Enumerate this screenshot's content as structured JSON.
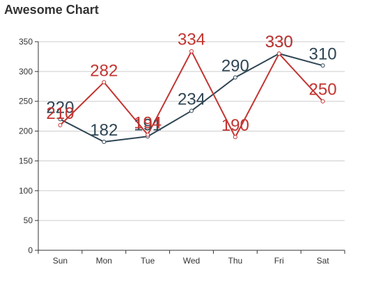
{
  "chart_data": {
    "type": "line",
    "title": "Awesome Chart",
    "categories": [
      "Sun",
      "Mon",
      "Tue",
      "Wed",
      "Thu",
      "Fri",
      "Sat"
    ],
    "y_ticks": [
      "0",
      "50",
      "100",
      "150",
      "200",
      "250",
      "300",
      "350"
    ],
    "ylim": [
      0,
      350
    ],
    "grid": true,
    "series": [
      {
        "values": [
          220,
          182,
          191,
          234,
          290,
          330,
          310
        ],
        "data_labels": [
          "220",
          "182",
          "191",
          "234",
          "290",
          "330",
          "310"
        ],
        "color": "#2f4554"
      },
      {
        "values": [
          210,
          282,
          194,
          334,
          190,
          330,
          250
        ],
        "data_labels": [
          "210",
          "282",
          "194",
          "334",
          "190",
          "330",
          "250"
        ],
        "color": "#c23531"
      }
    ]
  }
}
